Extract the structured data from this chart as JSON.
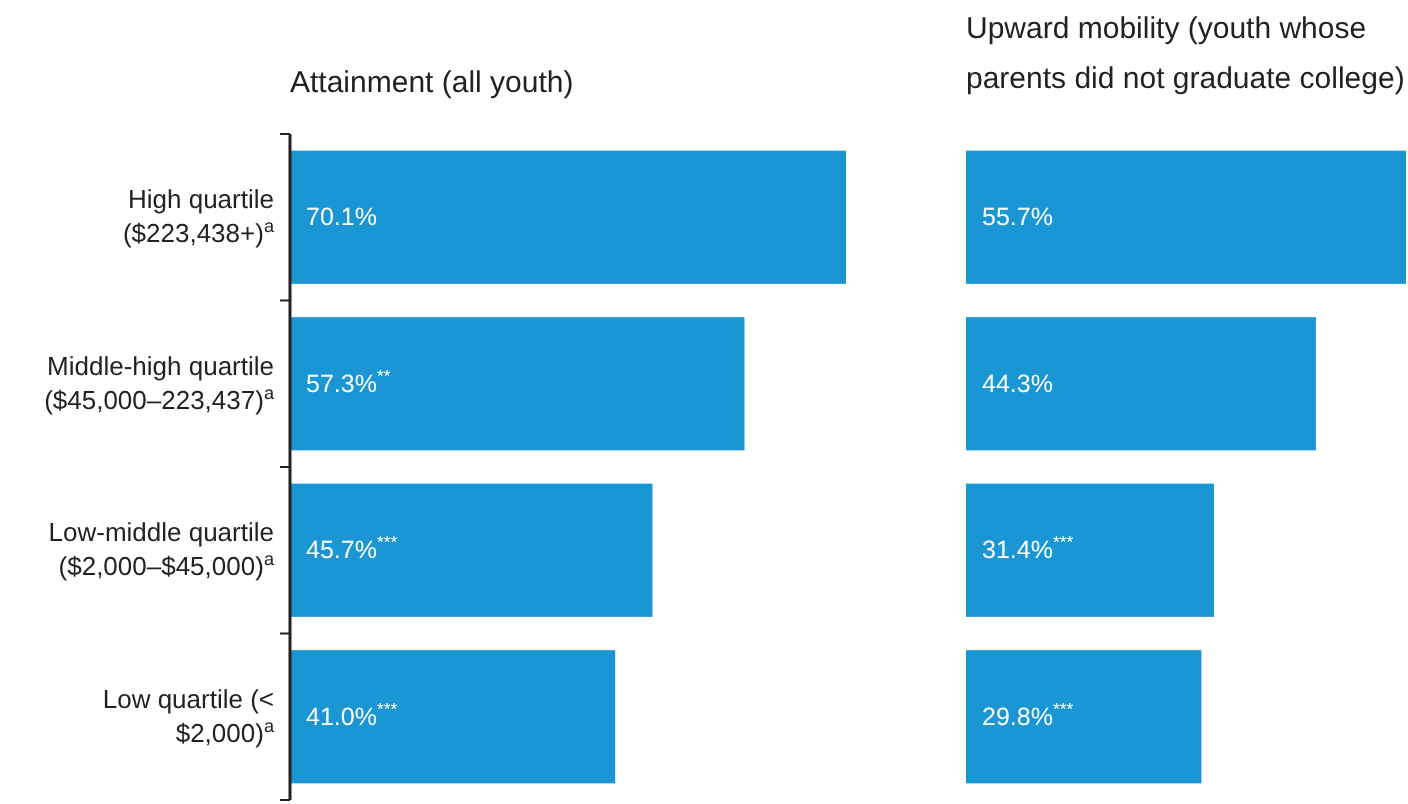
{
  "chart_data": [
    {
      "type": "bar",
      "orientation": "horizontal",
      "title": "Attainment (all youth)",
      "categories": [
        "High quartile ($223,438+)$^{a}$",
        "Middle-high quartile ($45,000–223,437)$^{a}$",
        "Low-middle quartile ($2,000–$45,000)$^{a}$",
        "Low quartile (< $2,000)$^{a}$"
      ],
      "values": [
        70.1,
        57.3,
        45.7,
        41.0
      ],
      "color": "#1a96d4",
      "value_labels": [
        "70.1%",
        "57.3%$^{**}$",
        "45.7%$^{***}$",
        "41.0%$^{***}$"
      ],
      "tick_labels": "y"
    },
    {
      "type": "bar",
      "orientation": "horizontal",
      "title": "Upward mobility (youth whose parents did not graduate college)",
      "categories": [
        null,
        null,
        null,
        null
      ],
      "values": [
        55.7,
        44.3,
        31.4,
        29.8
      ],
      "color": "#1a96d4",
      "value_labels": [
        "55.7%",
        "44.3%",
        "31.4%$^{***}$",
        "29.8%$^{***}$"
      ],
      "tick_labels": false
    }
  ]
}
